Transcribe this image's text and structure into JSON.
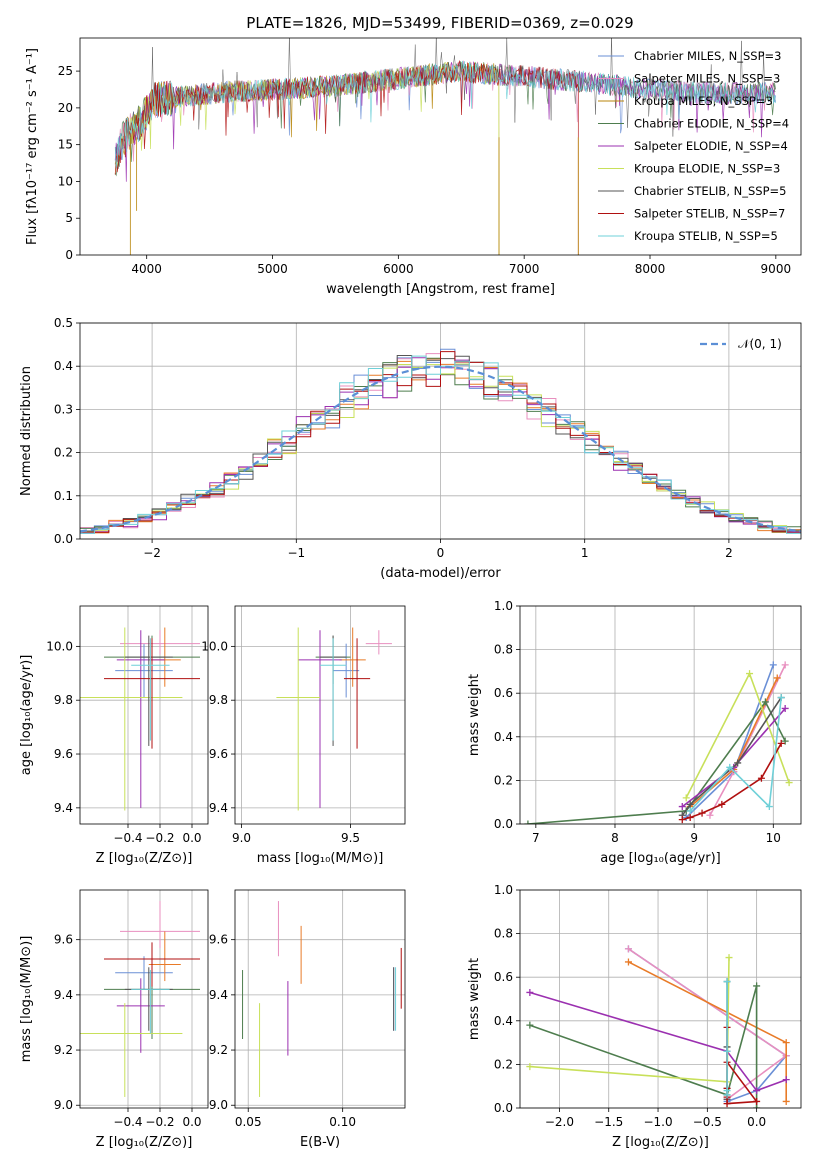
{
  "figure": {
    "title": "PLATE=1826, MJD=53499, FIBERID=0369, z=0.029"
  },
  "chart_data": [
    {
      "id": "spectrum",
      "type": "line",
      "xlabel": "wavelength [Angstrom, rest frame]",
      "ylabel": "Flux [fλ10⁻¹⁷ erg cm⁻² s⁻¹ A⁻¹]",
      "xlim": [
        3470,
        9200
      ],
      "ylim": [
        0,
        29.5
      ],
      "xticks": [
        4000,
        5000,
        6000,
        7000,
        8000,
        9000
      ],
      "yticks": [
        0,
        5,
        10,
        15,
        20,
        25
      ],
      "legend_position": "top-right",
      "series": [
        {
          "name": "Chabrier MILES, N_SSP=3",
          "color": "#6a8fd6",
          "y_center": 21.5
        },
        {
          "name": "Salpeter MILES, N_SSP=3",
          "color": "#e88fbf",
          "y_center": 21.5
        },
        {
          "name": "Kroupa MILES, N_SSP=3",
          "color": "#b8860b",
          "y_center": 21.5
        },
        {
          "name": "Chabrier ELODIE, N_SSP=4",
          "color": "#4e7d4e",
          "y_center": 21.5
        },
        {
          "name": "Salpeter ELODIE, N_SSP=4",
          "color": "#9b30b0",
          "y_center": 21.5
        },
        {
          "name": "Kroupa ELODIE, N_SSP=3",
          "color": "#c8e05a",
          "y_center": 21.5
        },
        {
          "name": "Chabrier STELIB, N_SSP=5",
          "color": "#555555",
          "y_center": 21.5
        },
        {
          "name": "Salpeter STELIB, N_SSP=7",
          "color": "#b01010",
          "y_center": 21.5
        },
        {
          "name": "Kroupa STELIB, N_SSP=5",
          "color": "#6fd0d8",
          "y_center": 21.5
        }
      ],
      "spectrum_shape": [
        [
          3750,
          13
        ],
        [
          3820,
          16
        ],
        [
          3950,
          18
        ],
        [
          4050,
          21
        ],
        [
          4500,
          22
        ],
        [
          5000,
          22.5
        ],
        [
          5500,
          23
        ],
        [
          6000,
          24
        ],
        [
          6500,
          25
        ],
        [
          6800,
          24.5
        ],
        [
          7000,
          24.3
        ],
        [
          7500,
          23.5
        ],
        [
          8000,
          22.5
        ],
        [
          8500,
          22
        ],
        [
          9000,
          22
        ]
      ],
      "dropouts": [
        [
          3870,
          0
        ],
        [
          3920,
          6
        ],
        [
          6800,
          0
        ],
        [
          7430,
          0
        ]
      ]
    },
    {
      "id": "residuals",
      "type": "line",
      "xlabel": "(data-model)/error",
      "ylabel": "Normed distribution",
      "xlim": [
        -2.5,
        2.5
      ],
      "ylim": [
        0,
        0.5
      ],
      "xticks": [
        -2,
        -1,
        0,
        1,
        2
      ],
      "yticks": [
        0.0,
        0.1,
        0.2,
        0.3,
        0.4,
        0.5
      ],
      "legend_position": "top-right",
      "legend": "𝒩(0, 1)",
      "gaussian": {
        "mean": 0,
        "sigma": 1,
        "color": "#5b8fd6"
      },
      "bin_width": 0.1,
      "hist_colors": [
        "#6a8fd6",
        "#e88fbf",
        "#e87b28",
        "#4e7d4e",
        "#9b30b0",
        "#c8e05a",
        "#555555",
        "#b01010",
        "#6fd0d8"
      ]
    },
    {
      "id": "age-vs-Z",
      "type": "scatter",
      "xlabel": "Z [log₁₀(Z/Z⊙)]",
      "ylabel": "age  [log₁₀(age/yr)]",
      "xlim": [
        -0.7,
        0.1
      ],
      "ylim": [
        9.34,
        10.15
      ],
      "xticks": [
        -0.4,
        -0.2,
        0.0
      ],
      "yticks": [
        9.4,
        9.6,
        9.8,
        10.0
      ],
      "points": [
        {
          "x": -0.3,
          "y": 9.91,
          "xerr": 0.18,
          "yerr": [
            0.1,
            0.1
          ],
          "color": "#6a8fd6"
        },
        {
          "x": -0.2,
          "y": 10.01,
          "xerr": 0.25,
          "yerr": [
            0.04,
            0.05
          ],
          "color": "#e88fbf"
        },
        {
          "x": -0.17,
          "y": 9.95,
          "xerr": 0.1,
          "yerr": [
            0.1,
            0.12
          ],
          "color": "#e87b28"
        },
        {
          "x": -0.25,
          "y": 9.96,
          "xerr": 0.3,
          "yerr": [
            0.1,
            0.08
          ],
          "color": "#4e7d4e"
        },
        {
          "x": -0.32,
          "y": 9.95,
          "xerr": 0.15,
          "yerr": [
            0.55,
            0.11
          ],
          "color": "#9b30b0"
        },
        {
          "x": -0.42,
          "y": 9.81,
          "xerr": 0.36,
          "yerr": [
            0.42,
            0.26
          ],
          "color": "#c8e05a"
        },
        {
          "x": -0.27,
          "y": 9.96,
          "xerr": 0.15,
          "yerr": [
            0.33,
            0.08
          ],
          "color": "#555555"
        },
        {
          "x": -0.25,
          "y": 9.88,
          "xerr": 0.3,
          "yerr": [
            0.26,
            0.15
          ],
          "color": "#b01010"
        },
        {
          "x": -0.26,
          "y": 9.93,
          "xerr": 0.12,
          "yerr": [
            0.28,
            0.1
          ],
          "color": "#6fd0d8"
        }
      ]
    },
    {
      "id": "age-vs-mass",
      "type": "scatter",
      "xlabel": "mass [log₁₀(M/M⊙)]",
      "ylabel": "",
      "xlim": [
        8.97,
        9.75
      ],
      "ylim": [
        9.34,
        10.15
      ],
      "xticks": [
        9.0,
        9.5
      ],
      "yticks": [
        9.4,
        9.6,
        9.8,
        10.0
      ],
      "points": [
        {
          "x": 9.48,
          "y": 9.91,
          "xerr": 0.06,
          "yerr": [
            0.1,
            0.1
          ],
          "color": "#6a8fd6"
        },
        {
          "x": 9.63,
          "y": 10.01,
          "xerr": 0.06,
          "yerr": [
            0.04,
            0.05
          ],
          "color": "#e88fbf"
        },
        {
          "x": 9.51,
          "y": 9.95,
          "xerr": 0.06,
          "yerr": [
            0.1,
            0.12
          ],
          "color": "#e87b28"
        },
        {
          "x": 9.42,
          "y": 9.96,
          "xerr": 0.08,
          "yerr": [
            0.1,
            0.08
          ],
          "color": "#4e7d4e"
        },
        {
          "x": 9.36,
          "y": 9.95,
          "xerr": 0.1,
          "yerr": [
            0.55,
            0.11
          ],
          "color": "#9b30b0"
        },
        {
          "x": 9.26,
          "y": 9.81,
          "xerr": 0.1,
          "yerr": [
            0.42,
            0.26
          ],
          "color": "#c8e05a"
        },
        {
          "x": 9.42,
          "y": 9.96,
          "xerr": 0.06,
          "yerr": [
            0.33,
            0.08
          ],
          "color": "#555555"
        },
        {
          "x": 9.53,
          "y": 9.88,
          "xerr": 0.06,
          "yerr": [
            0.26,
            0.15
          ],
          "color": "#b01010"
        },
        {
          "x": 9.42,
          "y": 9.93,
          "xerr": 0.06,
          "yerr": [
            0.28,
            0.1
          ],
          "color": "#6fd0d8"
        }
      ]
    },
    {
      "id": "mass-weight-vs-age",
      "type": "line",
      "xlabel": "age  [log₁₀(age/yr)]",
      "ylabel": "mass weight",
      "xlim": [
        6.8,
        10.35
      ],
      "ylim": [
        0,
        1.0
      ],
      "xticks": [
        7,
        8,
        9,
        10
      ],
      "yticks": [
        0.0,
        0.2,
        0.4,
        0.6,
        0.8,
        1.0
      ],
      "series": [
        {
          "color": "#6a8fd6",
          "points": [
            [
              8.9,
              0.03
            ],
            [
              9.5,
              0.24
            ],
            [
              10.0,
              0.73
            ]
          ]
        },
        {
          "color": "#e88fbf",
          "points": [
            [
              9.2,
              0.04
            ],
            [
              9.5,
              0.24
            ],
            [
              10.15,
              0.73
            ]
          ]
        },
        {
          "color": "#e87b28",
          "points": [
            [
              8.95,
              0.08
            ],
            [
              9.5,
              0.25
            ],
            [
              10.05,
              0.67
            ]
          ]
        },
        {
          "color": "#4e7d4e",
          "points": [
            [
              6.9,
              0.0
            ],
            [
              8.9,
              0.06
            ],
            [
              9.9,
              0.56
            ],
            [
              10.15,
              0.38
            ]
          ]
        },
        {
          "color": "#9b30b0",
          "points": [
            [
              8.85,
              0.08
            ],
            [
              9.5,
              0.26
            ],
            [
              10.15,
              0.53
            ]
          ]
        },
        {
          "color": "#c8e05a",
          "points": [
            [
              8.9,
              0.12
            ],
            [
              9.7,
              0.69
            ],
            [
              10.2,
              0.19
            ]
          ]
        },
        {
          "color": "#555555",
          "points": [
            [
              8.85,
              0.04
            ],
            [
              8.95,
              0.09
            ],
            [
              9.55,
              0.28
            ],
            [
              10.1,
              0.58
            ]
          ]
        },
        {
          "color": "#b01010",
          "points": [
            [
              8.85,
              0.02
            ],
            [
              8.95,
              0.03
            ],
            [
              9.1,
              0.05
            ],
            [
              9.35,
              0.09
            ],
            [
              9.85,
              0.21
            ],
            [
              10.1,
              0.37
            ]
          ]
        },
        {
          "color": "#6fd0d8",
          "points": [
            [
              8.95,
              0.06
            ],
            [
              9.45,
              0.26
            ],
            [
              9.95,
              0.08
            ],
            [
              10.1,
              0.58
            ]
          ]
        }
      ]
    },
    {
      "id": "mass-vs-Z",
      "type": "scatter",
      "xlabel": "Z [log₁₀(Z/Z⊙)]",
      "ylabel": "mass [log₁₀(M/M⊙)]",
      "xlim": [
        -0.7,
        0.1
      ],
      "ylim": [
        8.99,
        9.78
      ],
      "xticks": [
        -0.4,
        -0.2,
        0.0
      ],
      "yticks": [
        9.0,
        9.2,
        9.4,
        9.6
      ],
      "points": [
        {
          "x": -0.3,
          "y": 9.48,
          "xerr": 0.18,
          "yerr": [
            0.06,
            0.06
          ],
          "color": "#6a8fd6"
        },
        {
          "x": -0.2,
          "y": 9.63,
          "xerr": 0.25,
          "yerr": [
            0.06,
            0.11
          ],
          "color": "#e88fbf"
        },
        {
          "x": -0.17,
          "y": 9.51,
          "xerr": 0.1,
          "yerr": [
            0.06,
            0.12
          ],
          "color": "#e87b28"
        },
        {
          "x": -0.25,
          "y": 9.42,
          "xerr": 0.3,
          "yerr": [
            0.18,
            0.08
          ],
          "color": "#4e7d4e"
        },
        {
          "x": -0.32,
          "y": 9.36,
          "xerr": 0.15,
          "yerr": [
            0.17,
            0.1
          ],
          "color": "#9b30b0"
        },
        {
          "x": -0.42,
          "y": 9.26,
          "xerr": 0.36,
          "yerr": [
            0.23,
            0.11
          ],
          "color": "#c8e05a"
        },
        {
          "x": -0.27,
          "y": 9.42,
          "xerr": 0.15,
          "yerr": [
            0.15,
            0.08
          ],
          "color": "#555555"
        },
        {
          "x": -0.25,
          "y": 9.53,
          "xerr": 0.3,
          "yerr": [
            0.1,
            0.06
          ],
          "color": "#b01010"
        },
        {
          "x": -0.26,
          "y": 9.42,
          "xerr": 0.12,
          "yerr": [
            0.16,
            0.07
          ],
          "color": "#6fd0d8"
        }
      ]
    },
    {
      "id": "mass-vs-EBV",
      "type": "scatter",
      "xlabel": "E(B-V)",
      "ylabel": "",
      "xlim": [
        0.043,
        0.133
      ],
      "ylim": [
        8.99,
        9.78
      ],
      "xticks": [
        0.05,
        0.1
      ],
      "yticks": [
        9.0,
        9.2,
        9.4,
        9.6
      ],
      "points": [
        {
          "x": 0.127,
          "y": 9.39,
          "yerr": [
            0.12,
            0.11
          ],
          "color": "#6a8fd6"
        },
        {
          "x": 0.066,
          "y": 9.64,
          "yerr": [
            0.1,
            0.1
          ],
          "color": "#e88fbf"
        },
        {
          "x": 0.078,
          "y": 9.55,
          "yerr": [
            0.11,
            0.1
          ],
          "color": "#e87b28"
        },
        {
          "x": 0.047,
          "y": 9.37,
          "yerr": [
            0.13,
            0.12
          ],
          "color": "#4e7d4e"
        },
        {
          "x": 0.071,
          "y": 9.31,
          "yerr": [
            0.13,
            0.14
          ],
          "color": "#9b30b0"
        },
        {
          "x": 0.056,
          "y": 9.2,
          "yerr": [
            0.17,
            0.17
          ],
          "color": "#c8e05a"
        },
        {
          "x": 0.127,
          "y": 9.39,
          "yerr": [
            0.12,
            0.11
          ],
          "color": "#555555"
        },
        {
          "x": 0.131,
          "y": 9.46,
          "yerr": [
            0.11,
            0.11
          ],
          "color": "#b01010"
        },
        {
          "x": 0.128,
          "y": 9.38,
          "yerr": [
            0.11,
            0.12
          ],
          "color": "#6fd0d8"
        }
      ]
    },
    {
      "id": "mass-weight-vs-Z",
      "type": "line",
      "xlabel": "Z [log₁₀(Z/Z⊙)]",
      "ylabel": "mass weight",
      "xlim": [
        -2.4,
        0.45
      ],
      "ylim": [
        0,
        1.0
      ],
      "xticks": [
        -2.0,
        -1.5,
        -1.0,
        -0.5,
        0.0
      ],
      "yticks": [
        0.0,
        0.2,
        0.4,
        0.6,
        0.8,
        1.0
      ],
      "series": [
        {
          "color": "#6a8fd6",
          "points": [
            [
              -1.3,
              0.73
            ],
            [
              0.3,
              0.24
            ],
            [
              0.0,
              0.08
            ],
            [
              -0.3,
              0.03
            ]
          ]
        },
        {
          "color": "#e88fbf",
          "points": [
            [
              -1.3,
              0.73
            ],
            [
              0.3,
              0.24
            ],
            [
              -0.3,
              0.04
            ]
          ]
        },
        {
          "color": "#e87b28",
          "points": [
            [
              -1.3,
              0.67
            ],
            [
              0.3,
              0.3
            ],
            [
              0.3,
              0.03
            ]
          ]
        },
        {
          "color": "#4e7d4e",
          "points": [
            [
              -2.3,
              0.38
            ],
            [
              -0.3,
              0.06
            ],
            [
              0.0,
              0.56
            ],
            [
              0.0,
              0.0
            ]
          ]
        },
        {
          "color": "#9b30b0",
          "points": [
            [
              -2.3,
              0.53
            ],
            [
              -0.3,
              0.26
            ],
            [
              0.0,
              0.08
            ],
            [
              0.3,
              0.13
            ]
          ]
        },
        {
          "color": "#c8e05a",
          "points": [
            [
              -2.3,
              0.19
            ],
            [
              -0.3,
              0.12
            ],
            [
              -0.28,
              0.69
            ]
          ]
        },
        {
          "color": "#555555",
          "points": [
            [
              -0.3,
              0.58
            ],
            [
              -0.3,
              0.28
            ],
            [
              -0.3,
              0.09
            ],
            [
              -0.3,
              0.04
            ]
          ]
        },
        {
          "color": "#b01010",
          "points": [
            [
              -0.3,
              0.21
            ],
            [
              0.0,
              0.03
            ],
            [
              -0.3,
              0.02
            ],
            [
              -0.3,
              0.05
            ],
            [
              -0.3,
              0.09
            ],
            [
              -0.3,
              0.37
            ]
          ]
        },
        {
          "color": "#6fd0d8",
          "points": [
            [
              -0.3,
              0.58
            ],
            [
              -0.3,
              0.06
            ],
            [
              -0.3,
              0.26
            ],
            [
              -0.3,
              0.08
            ]
          ]
        }
      ]
    }
  ]
}
